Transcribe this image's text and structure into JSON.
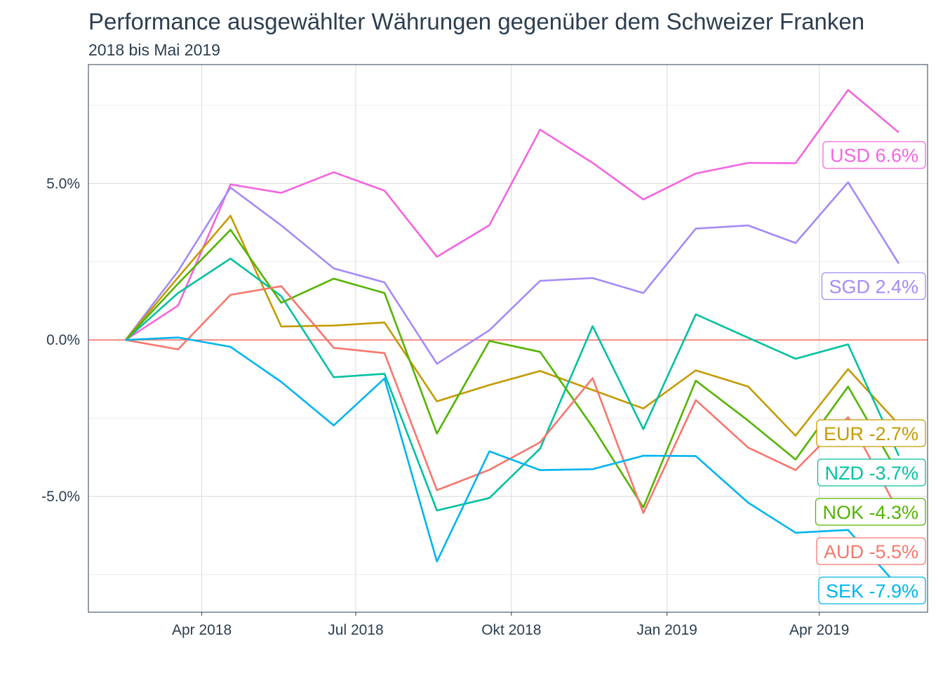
{
  "chart_data": {
    "type": "line",
    "title": "Performance ausgewählter Währungen gegenüber dem Schweizer Franken",
    "subtitle": "2018 bis Mai 2019",
    "xlabel": "",
    "ylabel": "",
    "x": [
      "2018-02-15",
      "2018-03-18",
      "2018-04-18",
      "2018-05-18",
      "2018-06-18",
      "2018-07-18",
      "2018-08-18",
      "2018-09-18",
      "2018-10-18",
      "2018-11-18",
      "2018-12-18",
      "2019-01-18",
      "2019-02-18",
      "2019-03-18",
      "2019-04-18",
      "2019-05-18"
    ],
    "x_ticks": [
      "Apr 2018",
      "Jul 2018",
      "Okt 2018",
      "Jan 2019",
      "Apr 2019"
    ],
    "x_tick_dates": [
      "2018-04-01",
      "2018-07-01",
      "2018-10-01",
      "2019-01-01",
      "2019-04-01"
    ],
    "x_range": [
      "2018-01-24",
      "2019-06-04"
    ],
    "y_ticks": [
      "5.0%",
      "0.0%",
      "-5.0%"
    ],
    "y_tick_values": [
      5,
      0,
      -5
    ],
    "ylim": [
      -8.7,
      8.8
    ],
    "grid": true,
    "reference_line": 0,
    "series": [
      {
        "name": "USD",
        "label": "USD 6.6%",
        "color": "#f464e0",
        "values": [
          0,
          1.1,
          4.97,
          4.7,
          5.36,
          4.77,
          2.66,
          3.67,
          6.72,
          5.66,
          4.49,
          5.32,
          5.66,
          5.65,
          7.99,
          6.63
        ]
      },
      {
        "name": "SGD",
        "label": "SGD 2.4%",
        "color": "#a58af7",
        "values": [
          0,
          2.2,
          4.87,
          3.66,
          2.29,
          1.84,
          -0.76,
          0.31,
          1.89,
          1.98,
          1.5,
          3.56,
          3.66,
          3.1,
          5.04,
          2.44
        ]
      },
      {
        "name": "EUR",
        "label": "EUR -2.7%",
        "color": "#c49a00",
        "values": [
          0,
          2.0,
          3.97,
          0.43,
          0.46,
          0.56,
          -1.96,
          -1.44,
          -0.99,
          -1.6,
          -2.19,
          -0.97,
          -1.49,
          -3.06,
          -0.93,
          -2.7
        ]
      },
      {
        "name": "NZD",
        "label": "NZD -3.7%",
        "color": "#00c19f",
        "values": [
          0,
          1.5,
          2.6,
          1.4,
          -1.19,
          -1.08,
          -5.45,
          -5.05,
          -3.47,
          0.44,
          -2.85,
          0.82,
          0.07,
          -0.6,
          -0.14,
          -3.7
        ]
      },
      {
        "name": "NOK",
        "label": "NOK -4.3%",
        "color": "#53b400",
        "values": [
          0,
          1.8,
          3.52,
          1.19,
          1.96,
          1.5,
          -2.99,
          -0.03,
          -0.38,
          -2.78,
          -5.35,
          -1.3,
          -2.58,
          -3.82,
          -1.49,
          -4.3
        ]
      },
      {
        "name": "AUD",
        "label": "AUD -5.5%",
        "color": "#f8766d",
        "values": [
          0,
          -0.3,
          1.44,
          1.72,
          -0.25,
          -0.42,
          -4.8,
          -4.15,
          -3.27,
          -1.22,
          -5.53,
          -1.92,
          -3.44,
          -4.16,
          -2.47,
          -5.5
        ]
      },
      {
        "name": "SEK",
        "label": "SEK -7.9%",
        "color": "#00b4ef",
        "values": [
          0,
          0.08,
          -0.22,
          -1.34,
          -2.73,
          -1.23,
          -7.08,
          -3.56,
          -4.16,
          -4.13,
          -3.7,
          -3.71,
          -5.2,
          -6.16,
          -6.07,
          -7.9
        ]
      }
    ],
    "colors": {
      "reference_line": "#f8766d",
      "grid": "#d9d9d9",
      "text": "#2c3e50"
    }
  }
}
